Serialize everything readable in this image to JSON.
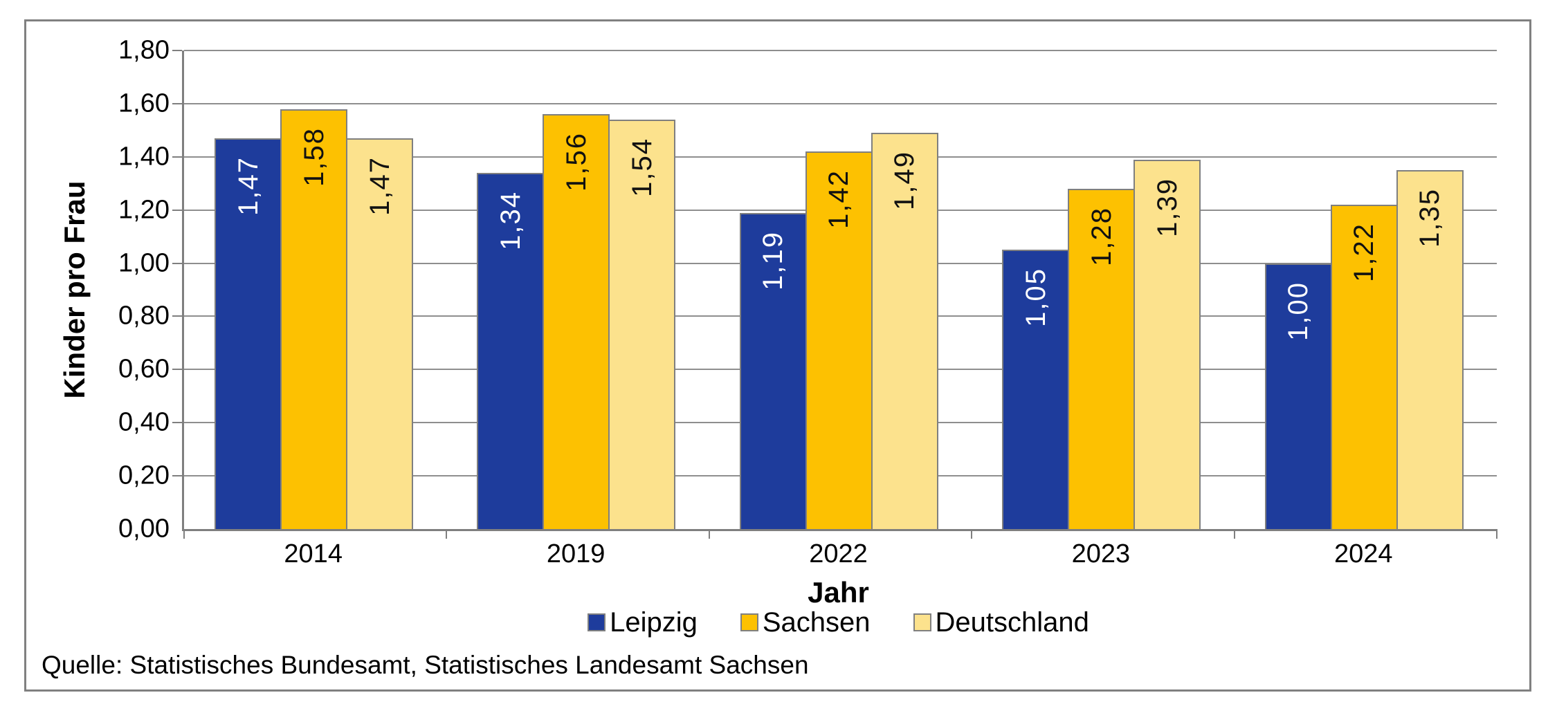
{
  "chart_data": {
    "type": "bar",
    "title": "",
    "categories": [
      "2014",
      "2019",
      "2022",
      "2023",
      "2024"
    ],
    "series": [
      {
        "name": "Leipzig",
        "color": "#1e3c9c",
        "label_color": "#ffffff",
        "values": [
          1.47,
          1.34,
          1.19,
          1.05,
          1.0
        ]
      },
      {
        "name": "Sachsen",
        "color": "#fdc101",
        "label_color": "#111111",
        "values": [
          1.58,
          1.56,
          1.42,
          1.28,
          1.22
        ]
      },
      {
        "name": "Deutschland",
        "color": "#fce28d",
        "label_color": "#111111",
        "values": [
          1.47,
          1.54,
          1.49,
          1.39,
          1.35
        ]
      }
    ],
    "xlabel": "Jahr",
    "ylabel": "Kinder pro Frau",
    "ylim": [
      0,
      1.8
    ],
    "ytick_step": 0.2,
    "decimal_separator": ",",
    "value_labels": "inside-top-rotated",
    "grid": "horizontal",
    "legend_position": "bottom",
    "source_note": "Quelle: Statistisches Bundesamt, Statistisches Landesamt Sachsen"
  },
  "styles": {
    "grid_color": "#8e8e8e",
    "axis_color": "#7f7f7f",
    "bar_border_color": "#7f7f7f",
    "frame_border_color": "#808080",
    "text_color": "#000000"
  }
}
